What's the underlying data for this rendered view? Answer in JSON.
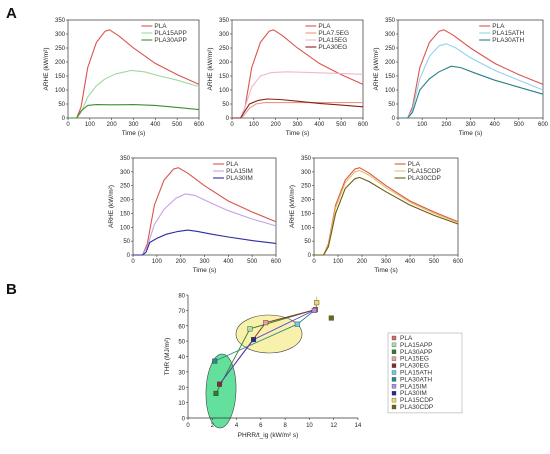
{
  "figure": {
    "panel_a_label": "A",
    "panel_b_label": "B"
  },
  "chart_data": [
    {
      "type": "line",
      "xlabel": "Time (s)",
      "ylabel": "ARHE (kW/m²)",
      "xlim": [
        0,
        600
      ],
      "ylim": [
        0,
        350
      ],
      "xticks": [
        "0",
        "100",
        "200",
        "300",
        "400",
        "500",
        "600"
      ],
      "yticks": [
        "0",
        "50",
        "100",
        "150",
        "200",
        "250",
        "300",
        "350"
      ],
      "legend_position": "top-right",
      "series": [
        {
          "name": "PLA",
          "color": "#d9544f",
          "points": [
            [
              0,
              0
            ],
            [
              40,
              0
            ],
            [
              60,
              40
            ],
            [
              90,
              180
            ],
            [
              130,
              270
            ],
            [
              170,
              310
            ],
            [
              190,
              315
            ],
            [
              230,
              295
            ],
            [
              300,
              250
            ],
            [
              400,
              195
            ],
            [
              500,
              155
            ],
            [
              600,
              120
            ]
          ]
        },
        {
          "name": "PLA15APP",
          "color": "#9fd8a0",
          "points": [
            [
              0,
              0
            ],
            [
              40,
              0
            ],
            [
              60,
              20
            ],
            [
              90,
              75
            ],
            [
              130,
              115
            ],
            [
              170,
              140
            ],
            [
              220,
              158
            ],
            [
              290,
              170
            ],
            [
              350,
              165
            ],
            [
              420,
              150
            ],
            [
              500,
              135
            ],
            [
              600,
              112
            ]
          ]
        },
        {
          "name": "PLA30APP",
          "color": "#3c8f2e",
          "points": [
            [
              0,
              0
            ],
            [
              40,
              0
            ],
            [
              60,
              25
            ],
            [
              90,
              45
            ],
            [
              130,
              48
            ],
            [
              200,
              47
            ],
            [
              300,
              48
            ],
            [
              400,
              45
            ],
            [
              500,
              38
            ],
            [
              600,
              30
            ]
          ]
        }
      ]
    },
    {
      "type": "line",
      "xlabel": "Time (s)",
      "ylabel": "ARHE (kW/m²)",
      "xlim": [
        0,
        600
      ],
      "ylim": [
        0,
        350
      ],
      "xticks": [
        "0",
        "100",
        "200",
        "300",
        "400",
        "500",
        "600"
      ],
      "yticks": [
        "0",
        "50",
        "100",
        "150",
        "200",
        "250",
        "300",
        "350"
      ],
      "legend_position": "top-right",
      "series": [
        {
          "name": "PLA",
          "color": "#d9544f",
          "points": [
            [
              0,
              0
            ],
            [
              40,
              0
            ],
            [
              60,
              40
            ],
            [
              90,
              180
            ],
            [
              130,
              270
            ],
            [
              170,
              310
            ],
            [
              190,
              315
            ],
            [
              230,
              295
            ],
            [
              300,
              250
            ],
            [
              400,
              195
            ],
            [
              500,
              155
            ],
            [
              600,
              120
            ]
          ]
        },
        {
          "name": "PLA7.5EG",
          "color": "#e79a7f",
          "points": [
            [
              0,
              0
            ],
            [
              40,
              0
            ],
            [
              55,
              10
            ],
            [
              80,
              35
            ],
            [
              110,
              50
            ],
            [
              150,
              55
            ],
            [
              250,
              55
            ],
            [
              350,
              55
            ],
            [
              450,
              55
            ],
            [
              600,
              55
            ]
          ]
        },
        {
          "name": "PLA15EG",
          "color": "#f2b7c8",
          "points": [
            [
              0,
              0
            ],
            [
              40,
              0
            ],
            [
              60,
              40
            ],
            [
              90,
              110
            ],
            [
              130,
              150
            ],
            [
              180,
              162
            ],
            [
              250,
              165
            ],
            [
              350,
              163
            ],
            [
              450,
              160
            ],
            [
              600,
              156
            ]
          ]
        },
        {
          "name": "PLA30EG",
          "color": "#8a1f1f",
          "points": [
            [
              0,
              0
            ],
            [
              40,
              0
            ],
            [
              55,
              20
            ],
            [
              80,
              50
            ],
            [
              120,
              63
            ],
            [
              160,
              68
            ],
            [
              220,
              66
            ],
            [
              300,
              60
            ],
            [
              400,
              52
            ],
            [
              500,
              46
            ],
            [
              600,
              40
            ]
          ]
        }
      ]
    },
    {
      "type": "line",
      "xlabel": "Time (s)",
      "ylabel": "ARHE (kW/m²)",
      "xlim": [
        0,
        600
      ],
      "ylim": [
        0,
        350
      ],
      "xticks": [
        "0",
        "100",
        "200",
        "300",
        "400",
        "500",
        "600"
      ],
      "yticks": [
        "0",
        "50",
        "100",
        "150",
        "200",
        "250",
        "300",
        "350"
      ],
      "legend_position": "top-right",
      "series": [
        {
          "name": "PLA",
          "color": "#d9544f",
          "points": [
            [
              0,
              0
            ],
            [
              40,
              0
            ],
            [
              60,
              40
            ],
            [
              90,
              180
            ],
            [
              130,
              270
            ],
            [
              170,
              310
            ],
            [
              190,
              315
            ],
            [
              230,
              295
            ],
            [
              300,
              250
            ],
            [
              400,
              195
            ],
            [
              500,
              155
            ],
            [
              600,
              120
            ]
          ]
        },
        {
          "name": "PLA15ATH",
          "color": "#8fd3ee",
          "points": [
            [
              0,
              0
            ],
            [
              40,
              0
            ],
            [
              60,
              30
            ],
            [
              90,
              140
            ],
            [
              130,
              220
            ],
            [
              170,
              258
            ],
            [
              200,
              265
            ],
            [
              240,
              250
            ],
            [
              300,
              215
            ],
            [
              400,
              170
            ],
            [
              500,
              135
            ],
            [
              600,
              100
            ]
          ]
        },
        {
          "name": "PLA30ATH",
          "color": "#2a7e86",
          "points": [
            [
              0,
              0
            ],
            [
              40,
              0
            ],
            [
              60,
              20
            ],
            [
              90,
              100
            ],
            [
              130,
              140
            ],
            [
              170,
              165
            ],
            [
              220,
              185
            ],
            [
              260,
              180
            ],
            [
              320,
              160
            ],
            [
              400,
              135
            ],
            [
              500,
              110
            ],
            [
              600,
              85
            ]
          ]
        }
      ]
    },
    {
      "type": "line",
      "xlabel": "Time (s)",
      "ylabel": "ARHE (kW/m²)",
      "xlim": [
        0,
        600
      ],
      "ylim": [
        0,
        350
      ],
      "xticks": [
        "0",
        "100",
        "200",
        "300",
        "400",
        "500",
        "600"
      ],
      "yticks": [
        "0",
        "50",
        "100",
        "150",
        "200",
        "250",
        "300",
        "350"
      ],
      "legend_position": "top-right",
      "series": [
        {
          "name": "PLA",
          "color": "#d9544f",
          "points": [
            [
              0,
              0
            ],
            [
              40,
              0
            ],
            [
              60,
              40
            ],
            [
              90,
              180
            ],
            [
              130,
              270
            ],
            [
              170,
              310
            ],
            [
              190,
              315
            ],
            [
              230,
              295
            ],
            [
              300,
              250
            ],
            [
              400,
              195
            ],
            [
              500,
              155
            ],
            [
              600,
              120
            ]
          ]
        },
        {
          "name": "PLA15IM",
          "color": "#c9a0e6",
          "points": [
            [
              0,
              0
            ],
            [
              40,
              0
            ],
            [
              60,
              30
            ],
            [
              90,
              110
            ],
            [
              130,
              165
            ],
            [
              180,
              205
            ],
            [
              220,
              220
            ],
            [
              260,
              215
            ],
            [
              320,
              190
            ],
            [
              400,
              160
            ],
            [
              500,
              130
            ],
            [
              600,
              105
            ]
          ]
        },
        {
          "name": "PLA30IM",
          "color": "#2b2b9e",
          "points": [
            [
              0,
              0
            ],
            [
              40,
              0
            ],
            [
              55,
              10
            ],
            [
              70,
              45
            ],
            [
              100,
              60
            ],
            [
              140,
              75
            ],
            [
              190,
              85
            ],
            [
              230,
              90
            ],
            [
              270,
              85
            ],
            [
              330,
              75
            ],
            [
              400,
              65
            ],
            [
              500,
              52
            ],
            [
              600,
              42
            ]
          ]
        }
      ]
    },
    {
      "type": "line",
      "xlabel": "Time (s)",
      "ylabel": "ARHE (kW/m²)",
      "xlim": [
        0,
        600
      ],
      "ylim": [
        0,
        350
      ],
      "xticks": [
        "0",
        "100",
        "200",
        "300",
        "400",
        "500",
        "600"
      ],
      "yticks": [
        "0",
        "50",
        "100",
        "150",
        "200",
        "250",
        "300",
        "350"
      ],
      "legend_position": "top-right",
      "series": [
        {
          "name": "PLA",
          "color": "#d9544f",
          "points": [
            [
              0,
              0
            ],
            [
              40,
              0
            ],
            [
              60,
              40
            ],
            [
              90,
              180
            ],
            [
              130,
              270
            ],
            [
              170,
              310
            ],
            [
              190,
              315
            ],
            [
              230,
              295
            ],
            [
              300,
              250
            ],
            [
              400,
              195
            ],
            [
              500,
              155
            ],
            [
              600,
              120
            ]
          ]
        },
        {
          "name": "PLA15CDP",
          "color": "#e3c25c",
          "points": [
            [
              0,
              0
            ],
            [
              40,
              0
            ],
            [
              60,
              35
            ],
            [
              90,
              170
            ],
            [
              130,
              260
            ],
            [
              170,
              300
            ],
            [
              190,
              305
            ],
            [
              230,
              288
            ],
            [
              300,
              243
            ],
            [
              400,
              190
            ],
            [
              500,
              150
            ],
            [
              600,
              117
            ]
          ]
        },
        {
          "name": "PLA30CDP",
          "color": "#6e5a12",
          "points": [
            [
              0,
              0
            ],
            [
              40,
              0
            ],
            [
              60,
              30
            ],
            [
              90,
              150
            ],
            [
              130,
              240
            ],
            [
              170,
              275
            ],
            [
              190,
              280
            ],
            [
              230,
              265
            ],
            [
              300,
              228
            ],
            [
              400,
              180
            ],
            [
              500,
              143
            ],
            [
              600,
              112
            ]
          ]
        }
      ]
    },
    {
      "type": "scatter",
      "xlabel": "PHRR/t_ig (kW/m² s)",
      "ylabel": "THR (MJ/m²)",
      "xlim": [
        0,
        14
      ],
      "ylim": [
        0,
        80
      ],
      "xticks": [
        "0",
        "2",
        "4",
        "6",
        "8",
        "10",
        "12",
        "14"
      ],
      "yticks": [
        "0",
        "10",
        "20",
        "30",
        "40",
        "50",
        "60",
        "70",
        "80"
      ],
      "legend_position": "right",
      "points": [
        {
          "name": "PLA",
          "color": "#d46a6a",
          "x": 10.5,
          "y": 70.5
        },
        {
          "name": "PLA15APP",
          "color": "#a8e0a8",
          "x": 5.1,
          "y": 58
        },
        {
          "name": "PLA30APP",
          "color": "#2f7d2a",
          "x": 2.3,
          "y": 16
        },
        {
          "name": "PLA15EG",
          "color": "#e8a0a0",
          "x": 6.4,
          "y": 62
        },
        {
          "name": "PLA30EG",
          "color": "#8a2a2a",
          "x": 2.6,
          "y": 22
        },
        {
          "name": "PLA15ATH",
          "color": "#6ec6e8",
          "x": 9.0,
          "y": 61
        },
        {
          "name": "PLA30ATH",
          "color": "#2a8a88",
          "x": 2.2,
          "y": 37
        },
        {
          "name": "PLA15IM",
          "color": "#b48ee8",
          "x": 10.4,
          "y": 70
        },
        {
          "name": "PLA30IM",
          "color": "#2b2b8a",
          "x": 5.4,
          "y": 51
        },
        {
          "name": "PLA15CDP",
          "color": "#f1d66a",
          "x": 10.6,
          "y": 75
        },
        {
          "name": "PLA30CDP",
          "color": "#6a6a12",
          "x": 11.8,
          "y": 65
        }
      ]
    }
  ]
}
